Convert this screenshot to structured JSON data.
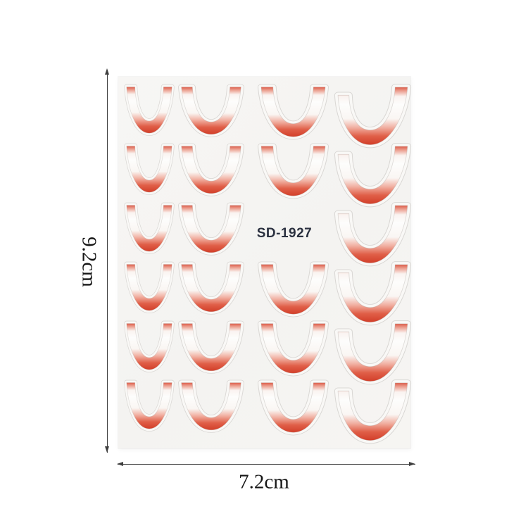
{
  "product_label": {
    "text": "SD-1927",
    "color": "#2b3140"
  },
  "dimensions": {
    "height": "9.2cm",
    "width": "7.2cm"
  },
  "sheet": {
    "rows": 6,
    "columns": 4,
    "sticker_count": 23,
    "sticker_style": "french-tip-gradient-decal",
    "label_cell": {
      "column": 3,
      "row": 3
    },
    "colors": {
      "tip_red": "#d23e29",
      "tip_red_light": "#f1b0a2",
      "sheet_white": "#f6f5f3",
      "diecut_line": "#d9d7d4",
      "annotation_line": "#3f3f3f"
    }
  }
}
